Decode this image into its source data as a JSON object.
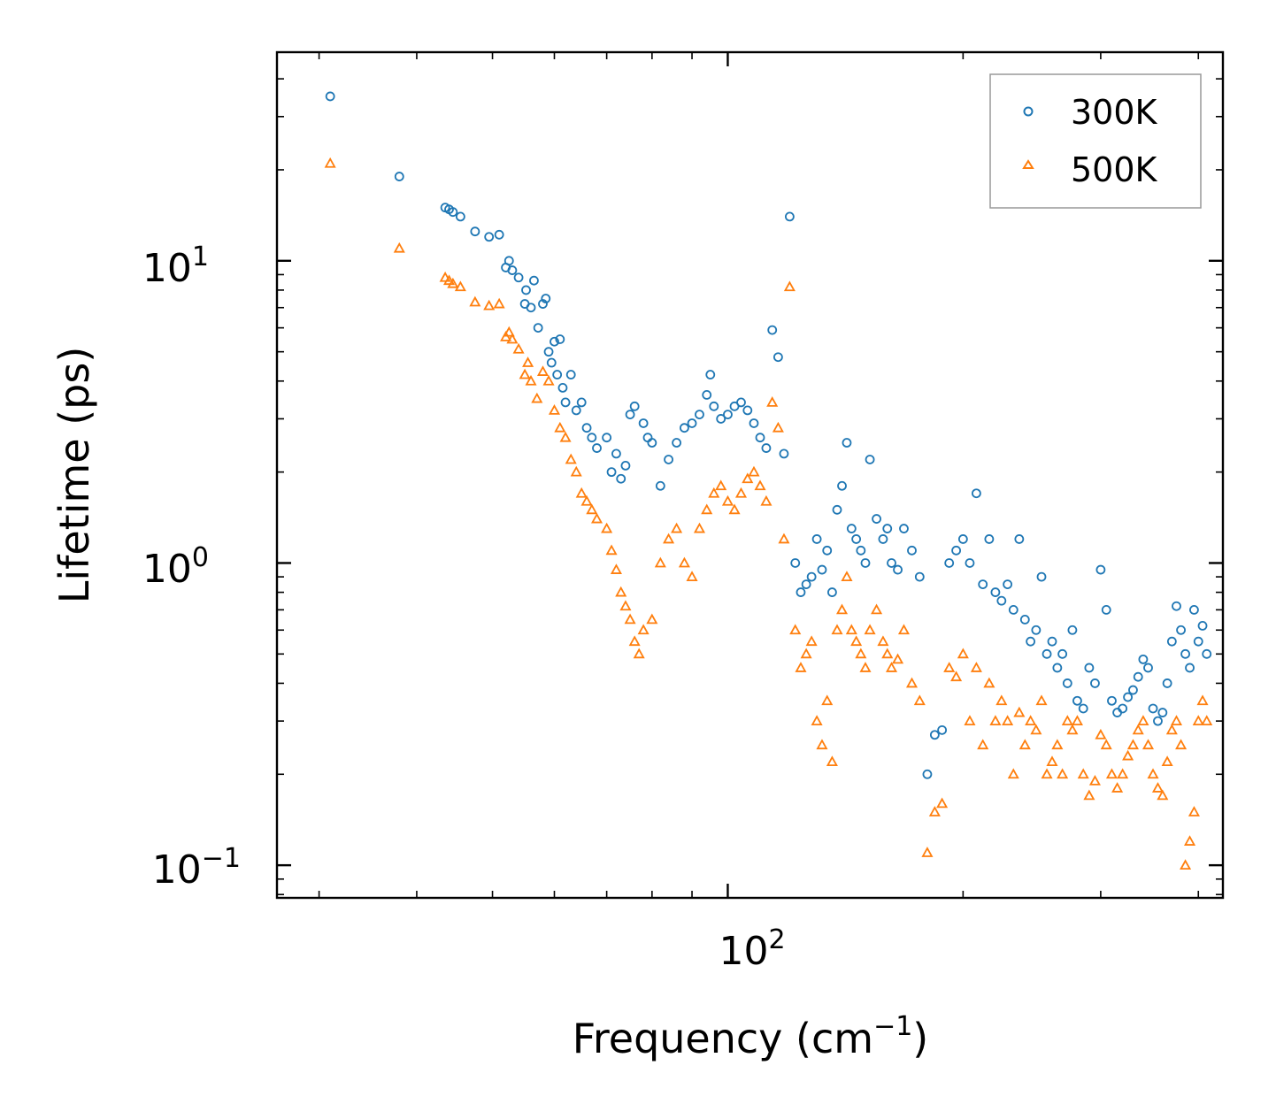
{
  "chart_data": {
    "type": "scatter",
    "title": "",
    "xlabel": "Frequency (cm",
    "xlabel_sup": "−1",
    "xlabel_end": ")",
    "ylabel": "Lifetime (ps)",
    "xscale": "log",
    "yscale": "log",
    "xlim": [
      26.5,
      430
    ],
    "ylim": [
      0.078,
      49
    ],
    "x_ticks": [
      {
        "base": "10",
        "exp": "2",
        "value": 100
      }
    ],
    "y_ticks": [
      {
        "base": "10",
        "exp": "−1",
        "value": 0.1
      },
      {
        "base": "10",
        "exp": "0",
        "value": 1
      },
      {
        "base": "10",
        "exp": "1",
        "value": 10
      }
    ],
    "legend_position": "top-right",
    "colors": {
      "300K": "#1f77b4",
      "500K": "#ff7f0e"
    },
    "series": [
      {
        "name": "300K",
        "marker": "circle",
        "points": [
          [
            31,
            35
          ],
          [
            38,
            19
          ],
          [
            43.5,
            15
          ],
          [
            44,
            14.8
          ],
          [
            44.5,
            14.5
          ],
          [
            45.5,
            14
          ],
          [
            47.5,
            12.5
          ],
          [
            49.5,
            12
          ],
          [
            51,
            12.2
          ],
          [
            52,
            9.5
          ],
          [
            52.5,
            10
          ],
          [
            53,
            9.3
          ],
          [
            54,
            8.8
          ],
          [
            55,
            7.2
          ],
          [
            55.2,
            8
          ],
          [
            56,
            7
          ],
          [
            56.5,
            8.6
          ],
          [
            57.2,
            6
          ],
          [
            58,
            7.2
          ],
          [
            58.5,
            7.5
          ],
          [
            59,
            5
          ],
          [
            59.5,
            4.6
          ],
          [
            60,
            5.4
          ],
          [
            60.5,
            4.2
          ],
          [
            61,
            5.5
          ],
          [
            61.5,
            3.8
          ],
          [
            62,
            3.4
          ],
          [
            63,
            4.2
          ],
          [
            64,
            3.2
          ],
          [
            65,
            3.4
          ],
          [
            66,
            2.8
          ],
          [
            67,
            2.6
          ],
          [
            68,
            2.4
          ],
          [
            70,
            2.6
          ],
          [
            71,
            2
          ],
          [
            72,
            2.3
          ],
          [
            73,
            1.9
          ],
          [
            74,
            2.1
          ],
          [
            75,
            3.1
          ],
          [
            76,
            3.3
          ],
          [
            78,
            2.9
          ],
          [
            79,
            2.6
          ],
          [
            80,
            2.5
          ],
          [
            82,
            1.8
          ],
          [
            84,
            2.2
          ],
          [
            86,
            2.5
          ],
          [
            88,
            2.8
          ],
          [
            90,
            2.9
          ],
          [
            92,
            3.1
          ],
          [
            94,
            3.6
          ],
          [
            95,
            4.2
          ],
          [
            96,
            3.3
          ],
          [
            98,
            3.0
          ],
          [
            100,
            3.1
          ],
          [
            102,
            3.3
          ],
          [
            104,
            3.4
          ],
          [
            106,
            3.2
          ],
          [
            108,
            2.9
          ],
          [
            110,
            2.6
          ],
          [
            112,
            2.4
          ],
          [
            114,
            5.9
          ],
          [
            116,
            4.8
          ],
          [
            118,
            2.3
          ],
          [
            120,
            14
          ],
          [
            122,
            1.0
          ],
          [
            124,
            0.8
          ],
          [
            126,
            0.85
          ],
          [
            128,
            0.9
          ],
          [
            130,
            1.2
          ],
          [
            132,
            0.95
          ],
          [
            134,
            1.1
          ],
          [
            136,
            0.8
          ],
          [
            138,
            1.5
          ],
          [
            140,
            1.8
          ],
          [
            142,
            2.5
          ],
          [
            144,
            1.3
          ],
          [
            146,
            1.2
          ],
          [
            148,
            1.1
          ],
          [
            150,
            1.0
          ],
          [
            152,
            2.2
          ],
          [
            155,
            1.4
          ],
          [
            158,
            1.2
          ],
          [
            160,
            1.3
          ],
          [
            162,
            1.0
          ],
          [
            165,
            0.95
          ],
          [
            168,
            1.3
          ],
          [
            172,
            1.1
          ],
          [
            176,
            0.9
          ],
          [
            180,
            0.2
          ],
          [
            184,
            0.27
          ],
          [
            188,
            0.28
          ],
          [
            192,
            1.0
          ],
          [
            196,
            1.1
          ],
          [
            200,
            1.2
          ],
          [
            204,
            1.0
          ],
          [
            208,
            1.7
          ],
          [
            212,
            0.85
          ],
          [
            216,
            1.2
          ],
          [
            220,
            0.8
          ],
          [
            224,
            0.75
          ],
          [
            228,
            0.85
          ],
          [
            232,
            0.7
          ],
          [
            236,
            1.2
          ],
          [
            240,
            0.65
          ],
          [
            244,
            0.55
          ],
          [
            248,
            0.6
          ],
          [
            252,
            0.9
          ],
          [
            256,
            0.5
          ],
          [
            260,
            0.55
          ],
          [
            264,
            0.45
          ],
          [
            268,
            0.5
          ],
          [
            272,
            0.4
          ],
          [
            276,
            0.6
          ],
          [
            280,
            0.35
          ],
          [
            285,
            0.33
          ],
          [
            290,
            0.45
          ],
          [
            295,
            0.4
          ],
          [
            300,
            0.95
          ],
          [
            305,
            0.7
          ],
          [
            310,
            0.35
          ],
          [
            315,
            0.32
          ],
          [
            320,
            0.33
          ],
          [
            325,
            0.36
          ],
          [
            330,
            0.38
          ],
          [
            335,
            0.42
          ],
          [
            340,
            0.48
          ],
          [
            345,
            0.45
          ],
          [
            350,
            0.33
          ],
          [
            355,
            0.3
          ],
          [
            360,
            0.32
          ],
          [
            365,
            0.4
          ],
          [
            370,
            0.55
          ],
          [
            375,
            0.72
          ],
          [
            380,
            0.6
          ],
          [
            385,
            0.5
          ],
          [
            390,
            0.45
          ],
          [
            395,
            0.7
          ],
          [
            400,
            0.55
          ],
          [
            405,
            0.62
          ],
          [
            410,
            0.5
          ]
        ]
      },
      {
        "name": "500K",
        "marker": "triangle",
        "points": [
          [
            31,
            21
          ],
          [
            38,
            11
          ],
          [
            43.5,
            8.8
          ],
          [
            44,
            8.6
          ],
          [
            44.5,
            8.4
          ],
          [
            45.5,
            8.2
          ],
          [
            47.5,
            7.3
          ],
          [
            49.5,
            7.1
          ],
          [
            51,
            7.2
          ],
          [
            52,
            5.6
          ],
          [
            52.5,
            5.8
          ],
          [
            53,
            5.5
          ],
          [
            54,
            5.1
          ],
          [
            55,
            4.2
          ],
          [
            55.5,
            4.6
          ],
          [
            56,
            4.0
          ],
          [
            57,
            3.5
          ],
          [
            58,
            4.3
          ],
          [
            59,
            4.0
          ],
          [
            60,
            3.2
          ],
          [
            61,
            2.8
          ],
          [
            62,
            2.6
          ],
          [
            63,
            2.2
          ],
          [
            64,
            2.0
          ],
          [
            65,
            1.7
          ],
          [
            66,
            1.6
          ],
          [
            67,
            1.5
          ],
          [
            68,
            1.4
          ],
          [
            70,
            1.3
          ],
          [
            71,
            1.1
          ],
          [
            72,
            0.95
          ],
          [
            73,
            0.8
          ],
          [
            74,
            0.72
          ],
          [
            75,
            0.65
          ],
          [
            76,
            0.55
          ],
          [
            77,
            0.5
          ],
          [
            78,
            0.6
          ],
          [
            80,
            0.65
          ],
          [
            82,
            1.0
          ],
          [
            84,
            1.2
          ],
          [
            86,
            1.3
          ],
          [
            88,
            1.0
          ],
          [
            90,
            0.9
          ],
          [
            92,
            1.3
          ],
          [
            94,
            1.5
          ],
          [
            96,
            1.7
          ],
          [
            98,
            1.8
          ],
          [
            100,
            1.6
          ],
          [
            102,
            1.5
          ],
          [
            104,
            1.7
          ],
          [
            106,
            1.9
          ],
          [
            108,
            2.0
          ],
          [
            110,
            1.8
          ],
          [
            112,
            1.6
          ],
          [
            114,
            3.4
          ],
          [
            116,
            2.8
          ],
          [
            118,
            1.2
          ],
          [
            120,
            8.2
          ],
          [
            122,
            0.6
          ],
          [
            124,
            0.45
          ],
          [
            126,
            0.5
          ],
          [
            128,
            0.55
          ],
          [
            130,
            0.3
          ],
          [
            132,
            0.25
          ],
          [
            134,
            0.35
          ],
          [
            136,
            0.22
          ],
          [
            138,
            0.6
          ],
          [
            140,
            0.7
          ],
          [
            142,
            0.9
          ],
          [
            144,
            0.6
          ],
          [
            146,
            0.55
          ],
          [
            148,
            0.5
          ],
          [
            150,
            0.45
          ],
          [
            152,
            0.6
          ],
          [
            155,
            0.7
          ],
          [
            158,
            0.55
          ],
          [
            160,
            0.5
          ],
          [
            162,
            0.45
          ],
          [
            165,
            0.48
          ],
          [
            168,
            0.6
          ],
          [
            172,
            0.4
          ],
          [
            176,
            0.35
          ],
          [
            180,
            0.11
          ],
          [
            184,
            0.15
          ],
          [
            188,
            0.16
          ],
          [
            192,
            0.45
          ],
          [
            196,
            0.42
          ],
          [
            200,
            0.5
          ],
          [
            204,
            0.3
          ],
          [
            208,
            0.45
          ],
          [
            212,
            0.25
          ],
          [
            216,
            0.4
          ],
          [
            220,
            0.3
          ],
          [
            224,
            0.35
          ],
          [
            228,
            0.3
          ],
          [
            232,
            0.2
          ],
          [
            236,
            0.32
          ],
          [
            240,
            0.25
          ],
          [
            244,
            0.3
          ],
          [
            248,
            0.28
          ],
          [
            252,
            0.35
          ],
          [
            256,
            0.2
          ],
          [
            260,
            0.22
          ],
          [
            264,
            0.25
          ],
          [
            268,
            0.2
          ],
          [
            272,
            0.3
          ],
          [
            276,
            0.28
          ],
          [
            280,
            0.3
          ],
          [
            285,
            0.2
          ],
          [
            290,
            0.17
          ],
          [
            295,
            0.19
          ],
          [
            300,
            0.27
          ],
          [
            305,
            0.25
          ],
          [
            310,
            0.2
          ],
          [
            315,
            0.18
          ],
          [
            320,
            0.2
          ],
          [
            325,
            0.23
          ],
          [
            330,
            0.25
          ],
          [
            335,
            0.28
          ],
          [
            340,
            0.3
          ],
          [
            345,
            0.25
          ],
          [
            350,
            0.2
          ],
          [
            355,
            0.18
          ],
          [
            360,
            0.17
          ],
          [
            365,
            0.22
          ],
          [
            370,
            0.28
          ],
          [
            375,
            0.3
          ],
          [
            380,
            0.25
          ],
          [
            385,
            0.1
          ],
          [
            390,
            0.12
          ],
          [
            395,
            0.15
          ],
          [
            400,
            0.3
          ],
          [
            405,
            0.35
          ],
          [
            410,
            0.3
          ]
        ]
      }
    ]
  }
}
